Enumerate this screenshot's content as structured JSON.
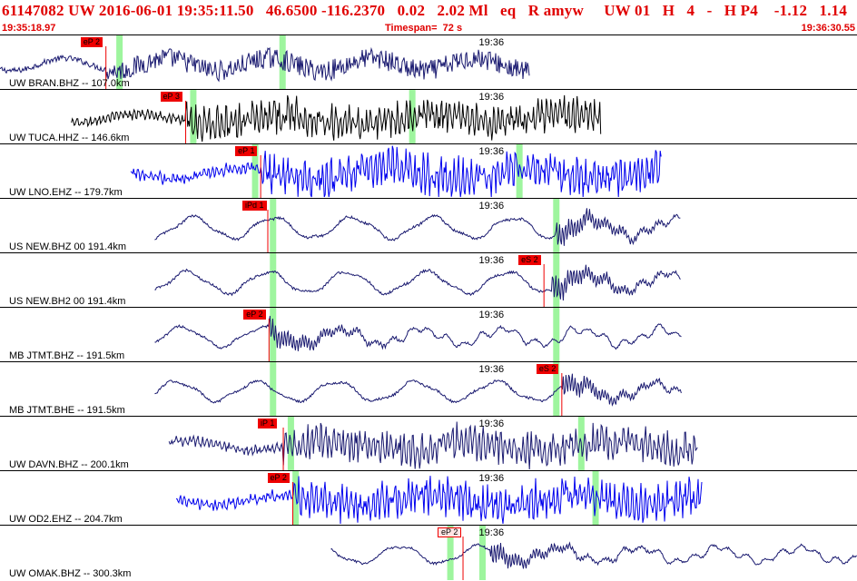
{
  "header": {
    "title": "61147082 UW 2016-06-01 19:35:11.50   46.6500 -116.2370   0.02   2.02 Ml   eq   R amyw     UW 01   H   4   -   H P4    -1.12   1.14",
    "start_time": "19:35:18.97",
    "timespan": "Timespan=  72 s",
    "end_time": "19:36:30.55"
  },
  "colors": {
    "accent": "#e00000",
    "pick_red": "#ee0000",
    "window_green": "#9ef59e",
    "trace_navy": "#1a1a70",
    "trace_black": "#000000",
    "trace_blue": "#0000ee"
  },
  "time_axis": {
    "start_s": 0,
    "end_s": 72,
    "minute_tick_label": "19:36",
    "minute_tick_s": 41
  },
  "panels": [
    {
      "station": "UW BRAN.BHZ -- 107.0km",
      "color": "navy",
      "trace_start_s": 0,
      "trace_end_s": 44.5,
      "style": "mix",
      "onset_s": 8.9,
      "amp": 0.55,
      "picks": [
        {
          "label": "eP 2",
          "time_s": 8.9,
          "style": "solid"
        }
      ],
      "windows": [
        {
          "time_s": 10.0
        },
        {
          "time_s": 23.7
        }
      ]
    },
    {
      "station": "UW TUCA.HHZ -- 146.6km",
      "color": "black",
      "trace_start_s": 6.0,
      "trace_end_s": 50.5,
      "style": "dense",
      "onset_s": 15.6,
      "amp": 0.6,
      "picks": [
        {
          "label": "eP 3",
          "time_s": 15.6,
          "style": "solid"
        }
      ],
      "windows": [
        {
          "time_s": 16.2
        },
        {
          "time_s": 34.6
        }
      ]
    },
    {
      "station": "UW LNO.EHZ -- 179.7km",
      "color": "blue",
      "trace_start_s": 11.0,
      "trace_end_s": 55.6,
      "style": "dense",
      "onset_s": 21.9,
      "amp": 0.7,
      "picks": [
        {
          "label": "eP 1",
          "time_s": 21.9,
          "style": "solid"
        }
      ],
      "windows": [
        {
          "time_s": 21.4
        },
        {
          "time_s": 43.6
        }
      ]
    },
    {
      "station": "US NEW.BHZ 00 191.4km",
      "color": "navy",
      "trace_start_s": 13.0,
      "trace_end_s": 57.2,
      "style": "wave",
      "onset_s": 46.7,
      "amp": 0.6,
      "picks": [
        {
          "label": "iPd 1",
          "time_s": 22.5,
          "style": "solid"
        }
      ],
      "windows": [
        {
          "time_s": 22.9
        },
        {
          "time_s": 46.7
        }
      ]
    },
    {
      "station": "US NEW.BH2 00 191.4km",
      "color": "navy",
      "trace_start_s": 13.0,
      "trace_end_s": 57.2,
      "style": "wave",
      "onset_s": 46.4,
      "amp": 0.6,
      "picks": [
        {
          "label": "eS 2",
          "time_s": 45.7,
          "style": "solid"
        }
      ],
      "windows": [
        {
          "time_s": 22.9
        },
        {
          "time_s": 46.7
        }
      ]
    },
    {
      "station": "MB JTMT.BHZ -- 191.5km",
      "color": "navy",
      "trace_start_s": 13.0,
      "trace_end_s": 57.3,
      "style": "wave",
      "onset_s": 22.6,
      "amp": 0.55,
      "picks": [
        {
          "label": "eP 2",
          "time_s": 22.6,
          "style": "solid"
        }
      ],
      "windows": [
        {
          "time_s": 22.9
        },
        {
          "time_s": 46.7
        }
      ]
    },
    {
      "station": "MB JTMT.BHE -- 191.5km",
      "color": "navy",
      "trace_start_s": 13.0,
      "trace_end_s": 57.3,
      "style": "wave",
      "onset_s": 47.2,
      "amp": 0.55,
      "picks": [
        {
          "label": "eS 2",
          "time_s": 47.2,
          "style": "solid"
        }
      ],
      "windows": [
        {
          "time_s": 22.9
        },
        {
          "time_s": 46.7
        }
      ]
    },
    {
      "station": "UW DAVN.BHZ -- 200.1km",
      "color": "navy",
      "trace_start_s": 14.2,
      "trace_end_s": 58.6,
      "style": "dense",
      "onset_s": 23.8,
      "amp": 0.6,
      "picks": [
        {
          "label": "iP 1",
          "time_s": 23.8,
          "style": "solid"
        }
      ],
      "windows": [
        {
          "time_s": 24.4
        },
        {
          "time_s": 48.8
        }
      ]
    },
    {
      "station": "UW OD2.EHZ -- 204.7km",
      "color": "blue",
      "trace_start_s": 14.8,
      "trace_end_s": 59.0,
      "style": "dense",
      "onset_s": 24.6,
      "amp": 0.65,
      "picks": [
        {
          "label": "eP 2",
          "time_s": 24.6,
          "style": "solid"
        }
      ],
      "windows": [
        {
          "time_s": 24.8
        },
        {
          "time_s": 50.0
        }
      ]
    },
    {
      "station": "UW OMAK.BHZ -- 300.3km",
      "color": "navy",
      "trace_start_s": 27.8,
      "trace_end_s": 72.0,
      "style": "wave",
      "onset_s": 41.2,
      "amp": 0.5,
      "picks": [
        {
          "label": "eP 2",
          "time_s": 38.9,
          "style": "outline"
        }
      ],
      "windows": [
        {
          "time_s": 37.8
        },
        {
          "time_s": 40.5
        }
      ]
    }
  ]
}
